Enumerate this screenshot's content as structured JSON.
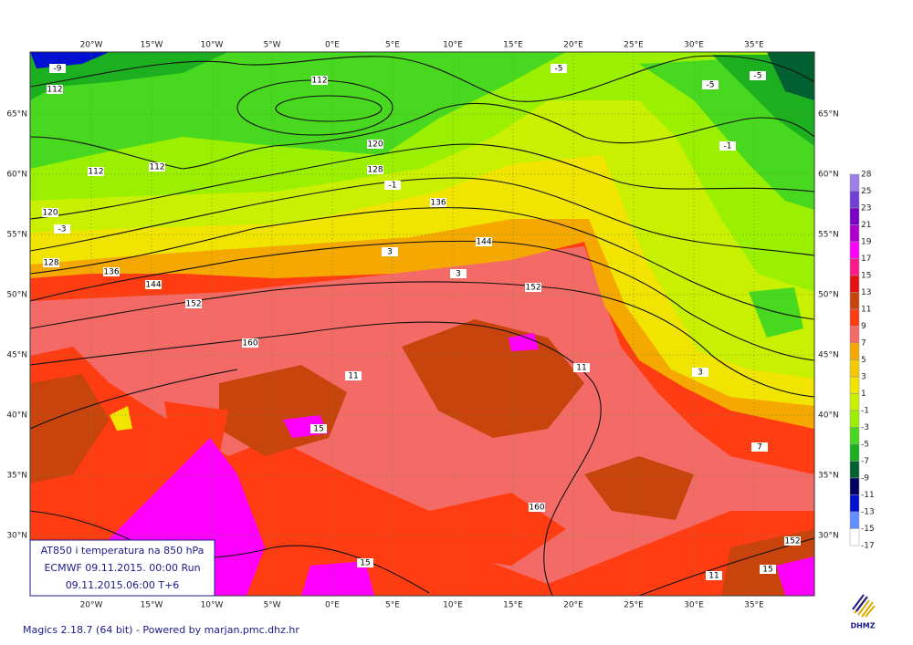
{
  "map": {
    "lon_labels": [
      "20°W",
      "15°W",
      "10°W",
      "5°W",
      "0°E",
      "5°E",
      "10°E",
      "15°E",
      "20°E",
      "25°E",
      "30°E",
      "35°E"
    ],
    "lat_labels": [
      "65°N",
      "60°N",
      "55°N",
      "50°N",
      "45°N",
      "40°N",
      "35°N",
      "30°N"
    ],
    "contour_labels": [
      "112",
      "112",
      "112",
      "112",
      "120",
      "120",
      "128",
      "128",
      "136",
      "136",
      "144",
      "144",
      "152",
      "152",
      "160",
      "160",
      "152"
    ],
    "temperature_labels": [
      "-9",
      "-5",
      "-5",
      "-5",
      "-1",
      "-1",
      "-3",
      "3",
      "3",
      "11",
      "11",
      "15",
      "3",
      "7",
      "15",
      "11",
      "15"
    ]
  },
  "legend": {
    "labels": [
      "28",
      "25",
      "23",
      "21",
      "19",
      "17",
      "15",
      "13",
      "11",
      "9",
      "7",
      "5",
      "3",
      "1",
      "-1",
      "-3",
      "-5",
      "-7",
      "-9",
      "-11",
      "-13",
      "-15",
      "-17"
    ]
  },
  "info_box": {
    "lines": [
      "AT850 i temperatura na 850 hPa",
      "ECMWF 09.11.2015.  00:00 Run",
      "09.11.2015.06:00  T+6"
    ]
  },
  "footer": "Magics 2.18.7 (64 bit) - Powered by marjan.pmc.dhz.hr",
  "logo": "DHMZ"
}
